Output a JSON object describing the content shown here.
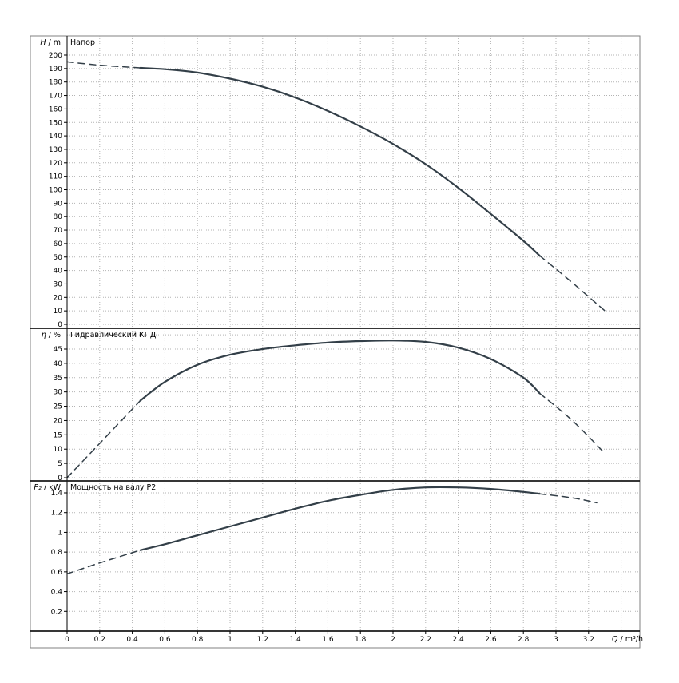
{
  "page": {
    "background": "#ffffff"
  },
  "frame": {
    "border_color": "#808080",
    "grid_color": "#b3b3b3",
    "curve_color": "#333f48",
    "x_label_symbol": "Q",
    "x_label_unit": " / m³/h",
    "x_ticks": [
      0,
      0.2,
      0.4,
      0.6,
      0.8,
      1,
      1.2,
      1.4,
      1.6,
      1.8,
      2,
      2.2,
      2.4,
      2.6,
      2.8,
      3,
      3.2
    ],
    "x_grid": [
      0.2,
      0.4,
      0.6,
      0.8,
      1,
      1.2,
      1.4,
      1.6,
      1.8,
      2,
      2.2,
      2.4,
      2.6,
      2.8,
      3,
      3.2,
      3.4
    ],
    "x_range": [
      0,
      3.5
    ]
  },
  "chart_data": [
    {
      "id": "head",
      "type": "line",
      "title": "Напор",
      "ylabel_symbol": "H",
      "ylabel_unit": " / m",
      "xlabel": "Q / m³/h",
      "ylim": [
        0,
        214
      ],
      "yticks": [
        0,
        10,
        20,
        30,
        40,
        50,
        60,
        70,
        80,
        90,
        100,
        110,
        120,
        130,
        140,
        150,
        160,
        170,
        180,
        190,
        200
      ],
      "grid_yticks": [
        0,
        10,
        20,
        30,
        40,
        50,
        60,
        70,
        80,
        90,
        100,
        110,
        120,
        130,
        140,
        150,
        160,
        170,
        180,
        190,
        200
      ],
      "series": [
        {
          "name": "head-extrapolated-low",
          "style": "dashed",
          "points": [
            [
              0,
              195
            ],
            [
              0.2,
              192.5
            ],
            [
              0.45,
              190.5
            ]
          ]
        },
        {
          "name": "head-curve",
          "style": "solid",
          "points": [
            [
              0.45,
              190.5
            ],
            [
              0.6,
              189.5
            ],
            [
              0.8,
              187
            ],
            [
              1,
              182.5
            ],
            [
              1.2,
              176.5
            ],
            [
              1.4,
              168.5
            ],
            [
              1.6,
              158.5
            ],
            [
              1.8,
              147
            ],
            [
              2,
              134
            ],
            [
              2.2,
              119
            ],
            [
              2.4,
              101.5
            ],
            [
              2.6,
              82
            ],
            [
              2.8,
              62
            ],
            [
              2.9,
              51
            ]
          ]
        },
        {
          "name": "head-extrapolated-high",
          "style": "dashed",
          "points": [
            [
              2.9,
              51
            ],
            [
              3.1,
              31
            ],
            [
              3.3,
              10
            ]
          ]
        }
      ]
    },
    {
      "id": "efficiency",
      "type": "line",
      "title": "Гидравлический КПД",
      "ylabel_symbol": "η",
      "ylabel_unit": " / %",
      "xlabel": "Q / m³/h",
      "ylim": [
        0,
        52
      ],
      "yticks": [
        0,
        5,
        10,
        15,
        20,
        25,
        30,
        35,
        40,
        45
      ],
      "grid_yticks": [
        0,
        5,
        10,
        15,
        20,
        25,
        30,
        35,
        40,
        45,
        50
      ],
      "series": [
        {
          "name": "efficiency-extrapolated-low",
          "style": "dashed",
          "points": [
            [
              0,
              0
            ],
            [
              0.2,
              12
            ],
            [
              0.45,
              27
            ]
          ]
        },
        {
          "name": "efficiency-curve",
          "style": "solid",
          "points": [
            [
              0.45,
              27
            ],
            [
              0.6,
              33.5
            ],
            [
              0.8,
              39.5
            ],
            [
              1,
              43
            ],
            [
              1.2,
              45
            ],
            [
              1.4,
              46.3
            ],
            [
              1.6,
              47.3
            ],
            [
              1.8,
              47.8
            ],
            [
              2,
              48
            ],
            [
              2.2,
              47.5
            ],
            [
              2.4,
              45.5
            ],
            [
              2.6,
              41.5
            ],
            [
              2.8,
              35
            ],
            [
              2.9,
              29.5
            ]
          ]
        },
        {
          "name": "efficiency-extrapolated-high",
          "style": "dashed",
          "points": [
            [
              2.9,
              29.5
            ],
            [
              3.1,
              20
            ],
            [
              3.3,
              8.5
            ]
          ]
        }
      ]
    },
    {
      "id": "power",
      "type": "line",
      "title": "Мощность на валу P2",
      "ylabel_symbol": "P₂",
      "ylabel_unit": " / kW",
      "xlabel": "Q / m³/h",
      "ylim": [
        0,
        1.52
      ],
      "yticks": [
        0.2,
        0.4,
        0.6,
        0.8,
        1,
        1.2,
        1.4
      ],
      "grid_yticks": [
        0.2,
        0.4,
        0.6,
        0.8,
        1,
        1.2,
        1.4
      ],
      "series": [
        {
          "name": "power-extrapolated-low",
          "style": "dashed",
          "points": [
            [
              0,
              0.58
            ],
            [
              0.2,
              0.69
            ],
            [
              0.45,
              0.82
            ]
          ]
        },
        {
          "name": "power-curve",
          "style": "solid",
          "points": [
            [
              0.45,
              0.82
            ],
            [
              0.6,
              0.88
            ],
            [
              0.8,
              0.97
            ],
            [
              1,
              1.06
            ],
            [
              1.2,
              1.15
            ],
            [
              1.4,
              1.24
            ],
            [
              1.6,
              1.32
            ],
            [
              1.8,
              1.38
            ],
            [
              2,
              1.43
            ],
            [
              2.2,
              1.455
            ],
            [
              2.4,
              1.455
            ],
            [
              2.6,
              1.44
            ],
            [
              2.8,
              1.41
            ],
            [
              2.9,
              1.39
            ]
          ]
        },
        {
          "name": "power-extrapolated-high",
          "style": "dashed",
          "points": [
            [
              2.9,
              1.39
            ],
            [
              3.1,
              1.35
            ],
            [
              3.25,
              1.3
            ]
          ]
        }
      ]
    }
  ]
}
